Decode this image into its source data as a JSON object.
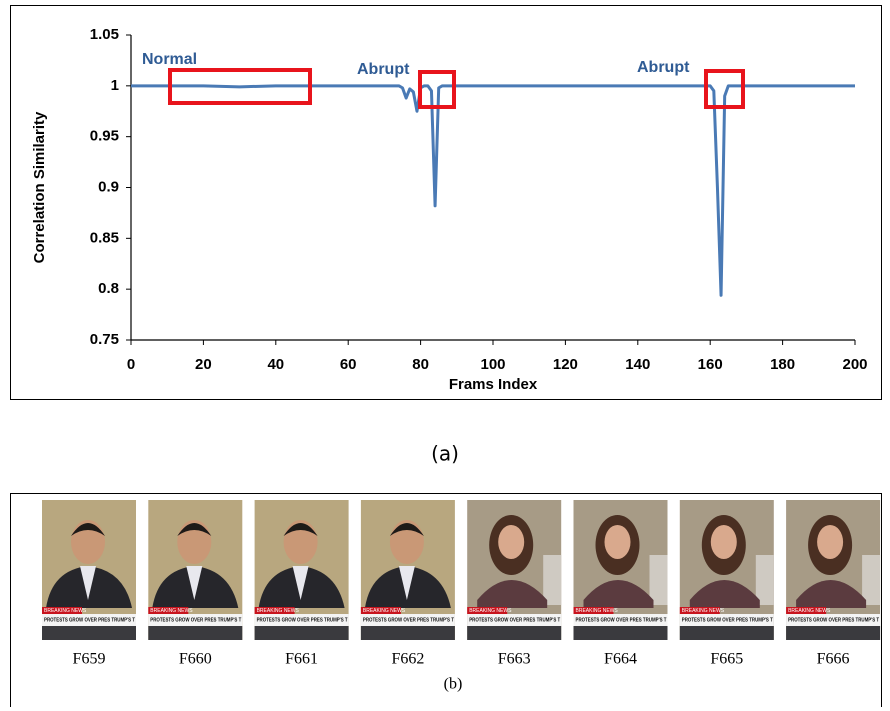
{
  "chart_data": {
    "type": "line",
    "x_label": "Frams Index",
    "y_label": "Correlation Similarity",
    "annotations": [
      "Normal",
      "Abrupt",
      "Abrupt"
    ],
    "caption": "(a)",
    "color": "#4a7ab5",
    "x": [
      0,
      10,
      20,
      30,
      40,
      50,
      60,
      70,
      74,
      75,
      76,
      77,
      78,
      79,
      80,
      81,
      82,
      83,
      84,
      85,
      86,
      100,
      120,
      140,
      160,
      161,
      162,
      163,
      164,
      165,
      166,
      180,
      200
    ],
    "values": [
      1,
      1,
      1,
      0.999,
      1,
      1,
      1,
      1,
      1,
      0.998,
      0.988,
      0.997,
      0.994,
      0.975,
      0.998,
      1,
      1,
      0.995,
      0.882,
      0.998,
      1,
      1,
      1,
      1,
      1,
      0.995,
      0.9,
      0.794,
      0.99,
      1,
      1,
      1,
      1
    ],
    "xlim": [
      0,
      200
    ],
    "xticks": [
      0,
      20,
      40,
      60,
      80,
      100,
      120,
      140,
      160,
      180,
      200
    ],
    "ylim": [
      0.75,
      1.05
    ],
    "yticks": [
      0.75,
      0.8,
      0.85,
      0.9,
      0.95,
      1,
      1.05
    ]
  },
  "frames": {
    "labels": [
      "F659",
      "F660",
      "F661",
      "F662",
      "F663",
      "F664",
      "F665",
      "F666"
    ],
    "banner_heading": "BREAKING NEWS",
    "banner_text": "PROTESTS GROW OVER PRES TRUMP'S T",
    "caption": "(b)"
  }
}
